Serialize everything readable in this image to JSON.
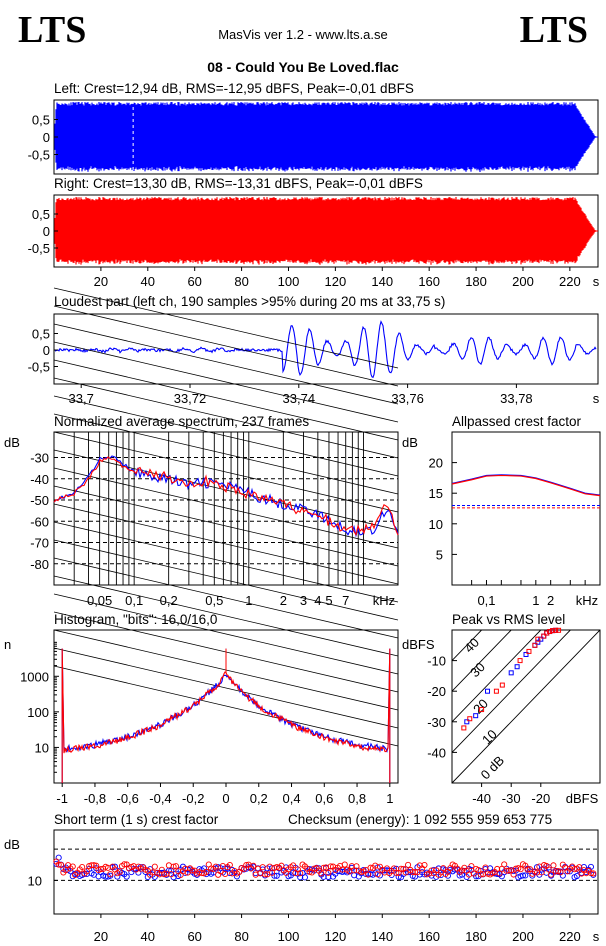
{
  "header": {
    "left_logo": "LTS",
    "app_title": "MasVis ver 1.2 - www.lts.a.se",
    "right_logo": "LTS",
    "file_name": "08 - Could You Be Loved.flac"
  },
  "panels": {
    "left": "Left: Crest=12,94 dB, RMS=-12,95 dBFS, Peak=-0,01 dBFS",
    "right": "Right: Crest=13,30 dB, RMS=-13,31 dBFS, Peak=-0,01 dBFS",
    "loudest": "Loudest part (left  ch, 190 samples >95% during 20 ms at 33,75 s)",
    "spectrum": "Normalized average spectrum, 237 frames",
    "allpass": "Allpassed crest factor",
    "histogram": "Histogram, \"bits\": 16,0/16,0",
    "peak_rms": "Peak vs RMS level",
    "short_term": "Short term (1 s) crest factor",
    "checksum": "Checksum (energy):  1 092 555 959 653 775"
  },
  "colors": {
    "left": "#0000ff",
    "right": "#ff0000",
    "frame": "#000000"
  },
  "chart_data": [
    {
      "id": "waveform-left",
      "type": "area",
      "title": "Left: Crest=12,94 dB, RMS=-12,95 dBFS, Peak=-0,01 dBFS",
      "x_range": [
        0,
        232
      ],
      "ylim": [
        -1,
        1
      ],
      "yticks": [
        "0,5",
        "0",
        "-0,5"
      ],
      "color": "#0000ff",
      "marker_x": 33.75
    },
    {
      "id": "waveform-right",
      "type": "area",
      "title": "Right: Crest=13,30 dB, RMS=-13,31 dBFS, Peak=-0,01 dBFS",
      "x_range": [
        0,
        232
      ],
      "ylim": [
        -1,
        1
      ],
      "yticks": [
        "0,5",
        "0",
        "-0,5"
      ],
      "xticks": [
        "20",
        "40",
        "60",
        "80",
        "100",
        "120",
        "140",
        "160",
        "180",
        "200",
        "220"
      ],
      "xunit": "s",
      "color": "#ff0000"
    },
    {
      "id": "loudest-part",
      "type": "line",
      "title": "Loudest part (left  ch, 190 samples >95% during 20 ms at 33,75 s)",
      "xlim": [
        33.695,
        33.795
      ],
      "ylim": [
        -1,
        1
      ],
      "yticks": [
        "0,5",
        "0",
        "-0,5"
      ],
      "xticks": [
        "33,7",
        "33,72",
        "33,74",
        "33,76",
        "33,78"
      ],
      "xunit": "s",
      "color": "#0000ff"
    },
    {
      "id": "spectrum",
      "type": "line",
      "title": "Normalized average spectrum, 237 frames",
      "ylabel": "dB",
      "ylim": [
        -90,
        -18
      ],
      "yticks": [
        "-30",
        "-40",
        "-50",
        "-60",
        "-70",
        "-80"
      ],
      "xlim_khz": [
        0.02,
        20
      ],
      "xticks": [
        "0,05",
        "0,1",
        "0,2",
        "0,5",
        "1",
        "2",
        "3",
        "4",
        "5",
        "7"
      ],
      "xunit": "kHz",
      "series": [
        {
          "color": "#0000ff",
          "x": [
            0.02,
            0.03,
            0.04,
            0.05,
            0.06,
            0.08,
            0.1,
            0.13,
            0.16,
            0.2,
            0.3,
            0.4,
            0.5,
            0.7,
            1,
            1.5,
            2,
            3,
            4,
            5,
            7,
            10,
            12,
            14,
            16,
            20
          ],
          "y": [
            -50,
            -47,
            -39,
            -31,
            -29,
            -33,
            -37,
            -38,
            -39,
            -40,
            -43,
            -42,
            -42,
            -44,
            -47,
            -50,
            -52,
            -54,
            -57,
            -60,
            -64,
            -65,
            -64,
            -59,
            -53,
            -65
          ]
        },
        {
          "color": "#ff0000",
          "x": [
            0.02,
            0.03,
            0.04,
            0.05,
            0.06,
            0.08,
            0.1,
            0.13,
            0.16,
            0.2,
            0.3,
            0.4,
            0.5,
            0.7,
            1,
            1.5,
            2,
            3,
            4,
            5,
            7,
            10,
            12,
            14,
            16,
            20
          ],
          "y": [
            -50,
            -47,
            -40,
            -32,
            -30,
            -34,
            -36,
            -37,
            -38,
            -40,
            -42,
            -41,
            -42,
            -45,
            -47,
            -50,
            -52,
            -55,
            -57,
            -60,
            -64,
            -64,
            -63,
            -58,
            -52,
            -66
          ]
        }
      ]
    },
    {
      "id": "allpass-crest",
      "type": "line",
      "title": "Allpassed crest factor",
      "ylabel": "dB",
      "ylim": [
        0,
        25
      ],
      "yticks": [
        "20",
        "15",
        "10",
        "5"
      ],
      "xticks": [
        "0,1",
        "1",
        "2"
      ],
      "xunit": "kHz",
      "series": [
        {
          "color": "#0000ff",
          "x": [
            0.02,
            0.05,
            0.1,
            0.2,
            0.5,
            1,
            2,
            5,
            10,
            20
          ],
          "y": [
            16.6,
            17.3,
            17.9,
            18.0,
            17.9,
            17.5,
            16.8,
            15.8,
            15.0,
            14.7
          ],
          "ref": 13.0
        },
        {
          "color": "#ff0000",
          "x": [
            0.02,
            0.05,
            0.1,
            0.2,
            0.5,
            1,
            2,
            5,
            10,
            20
          ],
          "y": [
            16.5,
            17.2,
            17.8,
            17.9,
            17.8,
            17.4,
            16.7,
            15.7,
            14.9,
            14.6
          ],
          "ref": 12.6
        }
      ]
    },
    {
      "id": "histogram",
      "type": "line",
      "title": "Histogram, \"bits\": 16,0/16,0",
      "ylabel": "n",
      "yscale": "log",
      "ylim": [
        1,
        20000
      ],
      "yticks": [
        "1000",
        "100",
        "10"
      ],
      "xlim": [
        -1.05,
        1.05
      ],
      "xticks": [
        "-1",
        "-0,8",
        "-0,6",
        "-0,4",
        "-0,2",
        "0",
        "0,2",
        "0,4",
        "0,6",
        "0,8",
        "1"
      ],
      "series": [
        {
          "color": "#0000ff",
          "x": [
            -1,
            -0.8,
            -0.6,
            -0.4,
            -0.2,
            -0.05,
            0,
            0.05,
            0.2,
            0.4,
            0.6,
            0.8,
            1
          ],
          "y": [
            9,
            12,
            20,
            45,
            150,
            600,
            1200,
            600,
            150,
            45,
            20,
            12,
            9
          ],
          "edge_peak": 6000
        },
        {
          "color": "#ff0000",
          "x": [
            -1,
            -0.8,
            -0.6,
            -0.4,
            -0.2,
            -0.05,
            0,
            0.05,
            0.2,
            0.4,
            0.6,
            0.8,
            1
          ],
          "y": [
            8.5,
            11,
            19,
            44,
            145,
            580,
            1250,
            580,
            145,
            44,
            19,
            11,
            8.5
          ],
          "edge_peak": 6000
        }
      ]
    },
    {
      "id": "peak-vs-rms",
      "type": "scatter",
      "title": "Peak vs RMS level",
      "ylabel": "dBFS",
      "xlabel": "dBFS",
      "xlim": [
        -50,
        0
      ],
      "ylim": [
        -50,
        0
      ],
      "yticks": [
        "-10",
        "-20",
        "-30",
        "-40"
      ],
      "xticks": [
        "-40",
        "-30",
        "-20"
      ],
      "diagonal_labels": [
        "40",
        "30",
        "20",
        "10",
        "0 dB"
      ],
      "series": [
        {
          "color": "#0000ff",
          "x": [
            -45,
            -42,
            -38,
            -30,
            -28,
            -25,
            -22,
            -21,
            -20,
            -19,
            -18,
            -17,
            -16,
            -15
          ],
          "y": [
            -30,
            -28,
            -20,
            -14,
            -12,
            -8,
            -5,
            -4,
            -3,
            -2,
            -1,
            -0.5,
            -0.2,
            -0.1
          ]
        },
        {
          "color": "#ff0000",
          "x": [
            -46,
            -44,
            -40,
            -35,
            -33,
            -27,
            -24,
            -22,
            -21,
            -19,
            -18,
            -17,
            -16,
            -15,
            -14
          ],
          "y": [
            -32,
            -29,
            -26,
            -20,
            -18,
            -10,
            -7,
            -5,
            -3,
            -2,
            -1,
            -0.5,
            -0.2,
            -0.1,
            -0.1
          ]
        }
      ]
    },
    {
      "id": "short-term-crest",
      "type": "scatter",
      "title": "Short term (1 s) crest factor",
      "ylabel": "dB",
      "ylim": [
        0,
        25
      ],
      "x_range": [
        0,
        232
      ],
      "yticks": [
        "10"
      ],
      "xticks": [
        "20",
        "40",
        "60",
        "80",
        "100",
        "120",
        "140",
        "160",
        "180",
        "200",
        "220"
      ],
      "xunit": "s",
      "ref_lines": [
        19.3,
        10.0
      ],
      "series": [
        {
          "color": "#0000ff",
          "typical": 12.5,
          "spread": 1.6
        },
        {
          "color": "#ff0000",
          "typical": 13.2,
          "spread": 1.6
        }
      ]
    }
  ]
}
